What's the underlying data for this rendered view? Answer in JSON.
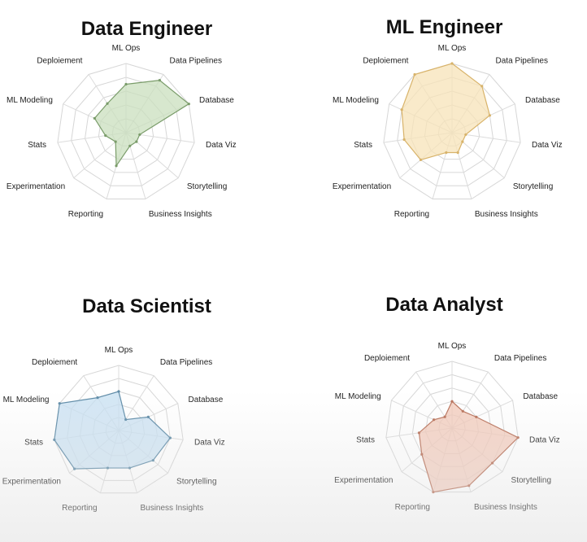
{
  "chart_data": [
    {
      "type": "radar",
      "title": "Data Engineer",
      "axes": [
        "ML Ops",
        "Data Pipelines",
        "Database",
        "Data Viz",
        "Storytelling",
        "Business Insights",
        "Reporting",
        "Experimentation",
        "Stats",
        "ML Modeling",
        "Deploiement"
      ],
      "values": [
        7,
        9,
        10,
        2,
        2,
        2,
        5,
        2,
        3,
        5,
        5
      ],
      "rmax": 10,
      "color": "#7a9c6a",
      "fill": "#c9dfbe"
    },
    {
      "type": "radar",
      "title": "ML Engineer",
      "axes": [
        "ML Ops",
        "Data Pipelines",
        "Database",
        "Data Viz",
        "Storytelling",
        "Business Insights",
        "Reporting",
        "Experimentation",
        "Stats",
        "ML Modeling",
        "Deploiement"
      ],
      "values": [
        10,
        8,
        6,
        2,
        2,
        3,
        3,
        6,
        7,
        8,
        10
      ],
      "rmax": 10,
      "color": "#d8b36a",
      "fill": "#f7e3b8"
    },
    {
      "type": "radar",
      "title": "Data Scientist",
      "axes": [
        "ML Ops",
        "Data Pipelines",
        "Database",
        "Data Viz",
        "Storytelling",
        "Business Insights",
        "Reporting",
        "Experimentation",
        "Stats",
        "ML Modeling",
        "Deploiement"
      ],
      "values": [
        6,
        2,
        5,
        8,
        7,
        6,
        6,
        9,
        10,
        10,
        6
      ],
      "rmax": 10,
      "color": "#5f8ca8",
      "fill": "#c6dff1"
    },
    {
      "type": "radar",
      "title": "Data Analyst",
      "axes": [
        "ML Ops",
        "Data Pipelines",
        "Database",
        "Data Viz",
        "Storytelling",
        "Business Insights",
        "Reporting",
        "Experimentation",
        "Stats",
        "ML Modeling",
        "Deploiement"
      ],
      "values": [
        4,
        3,
        4,
        10,
        8,
        9,
        10,
        6,
        5,
        3,
        2
      ],
      "rmax": 10,
      "color": "#b87058",
      "fill": "#f2c6b4"
    }
  ]
}
